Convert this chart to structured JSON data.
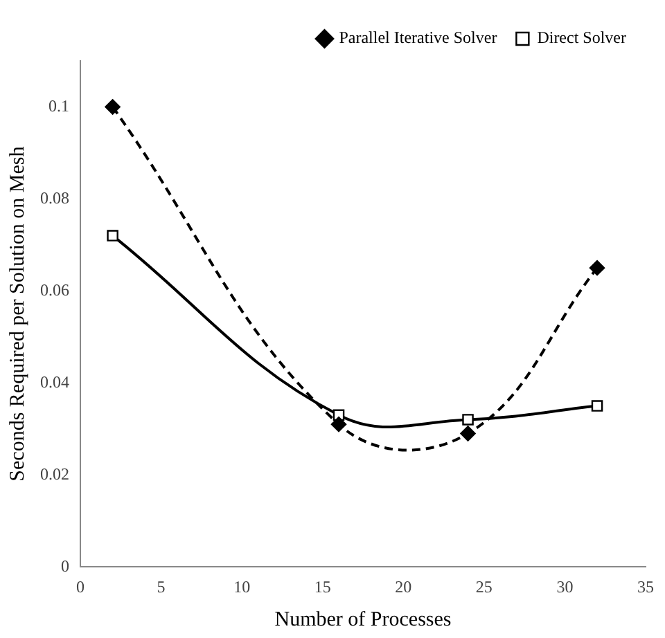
{
  "chart_data": {
    "type": "line",
    "xlabel": "Number of Processes",
    "ylabel": "Seconds Required per Solution on Mesh",
    "x": [
      2,
      16,
      24,
      32
    ],
    "series": [
      {
        "name": "Parallel Iterative Solver",
        "color": "#000000",
        "values": [
          0.1,
          0.031,
          0.029,
          0.065
        ],
        "marker": "diamond",
        "line_style": "dashed"
      },
      {
        "name": "Direct Solver",
        "color": "#000000",
        "values": [
          0.072,
          0.033,
          0.032,
          0.035
        ],
        "marker": "square",
        "line_style": "solid"
      }
    ],
    "xlim": [
      0,
      35
    ],
    "xticks": [
      0,
      5,
      10,
      15,
      20,
      25,
      30,
      35
    ],
    "ylim": [
      0,
      0.11
    ],
    "yticks": [
      0,
      0.02,
      0.04,
      0.06,
      0.08,
      0.1
    ],
    "grid": false,
    "legend": "top right"
  }
}
